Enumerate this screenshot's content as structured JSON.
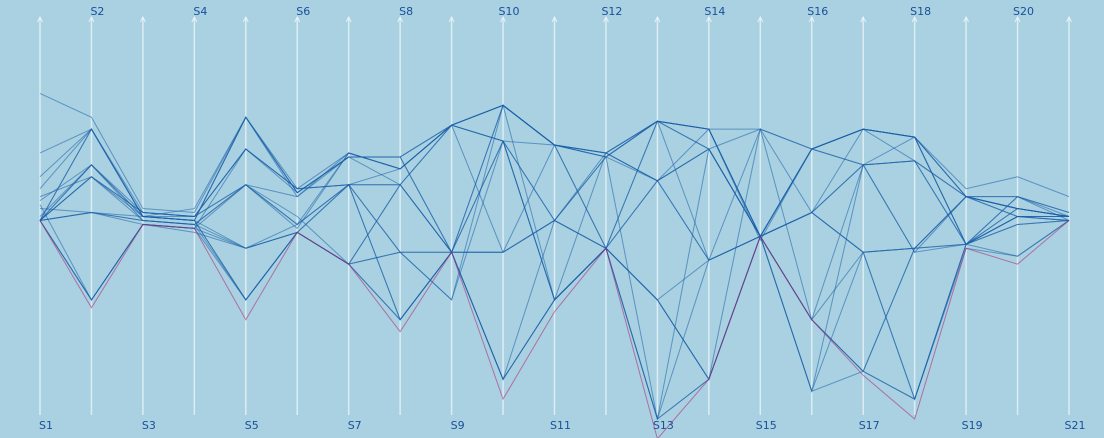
{
  "chart_data": {
    "type": "parallel_coordinates",
    "categories": [
      "S1",
      "S2",
      "S3",
      "S4",
      "S5",
      "S6",
      "S7",
      "S8",
      "S9",
      "S10",
      "S11",
      "S12",
      "S13",
      "S14",
      "S15",
      "S16",
      "S17",
      "S18",
      "S19",
      "S20",
      "S21"
    ],
    "ylim": [
      0,
      100
    ],
    "series": [
      {
        "color": "#1a5ea8",
        "values": [
          49,
          72,
          50,
          49,
          75,
          55,
          65,
          65,
          73,
          78,
          68,
          65,
          74,
          72,
          44,
          67,
          72,
          70,
          55,
          52,
          50
        ]
      },
      {
        "color": "#1a5ea8",
        "values": [
          49,
          63,
          51,
          50,
          67,
          57,
          58,
          58,
          41,
          69,
          49,
          42,
          59,
          67,
          45,
          51,
          63,
          64,
          43,
          50,
          49
        ]
      },
      {
        "color": "#1a5ea8",
        "values": [
          49,
          60,
          49,
          48,
          58,
          48,
          66,
          62,
          73,
          78,
          68,
          66,
          74,
          39,
          45,
          67,
          72,
          70,
          43,
          55,
          50
        ]
      },
      {
        "color": "#1a5ea8",
        "values": [
          49,
          29,
          48,
          47,
          42,
          46,
          38,
          24,
          41,
          9,
          29,
          42,
          29,
          9,
          45,
          24,
          11,
          4,
          42,
          40,
          49
        ]
      },
      {
        "color": "#1a5ea8",
        "values": [
          49,
          51,
          50,
          49,
          29,
          46,
          58,
          41,
          41,
          41,
          49,
          65,
          -1,
          67,
          72,
          51,
          41,
          42,
          55,
          52,
          50
        ]
      },
      {
        "color": "#1a5ea8",
        "values": [
          57,
          72,
          50,
          52,
          75,
          56,
          65,
          65,
          41,
          78,
          68,
          42,
          74,
          72,
          45,
          67,
          72,
          70,
          43,
          50,
          49
        ]
      },
      {
        "color": "#1a5ea8",
        "values": [
          55,
          60,
          51,
          50,
          58,
          50,
          38,
          58,
          73,
          69,
          29,
          42,
          59,
          39,
          45,
          6,
          63,
          41,
          55,
          55,
          51
        ]
      },
      {
        "color": "#1a5ea8",
        "values": [
          49,
          63,
          49,
          48,
          29,
          46,
          58,
          24,
          41,
          9,
          29,
          42,
          29,
          9,
          72,
          67,
          72,
          64,
          43,
          48,
          49
        ]
      },
      {
        "color": "#1a5ea8",
        "values": [
          52,
          51,
          48,
          47,
          67,
          57,
          66,
          62,
          73,
          41,
          49,
          66,
          74,
          67,
          45,
          51,
          41,
          4,
          43,
          52,
          50
        ]
      },
      {
        "color": "#1a5ea8",
        "values": [
          49,
          29,
          48,
          46,
          42,
          46,
          38,
          41,
          29,
          69,
          68,
          66,
          59,
          72,
          45,
          24,
          11,
          42,
          55,
          50,
          49
        ]
      },
      {
        "color": "#1a5ea8",
        "values": [
          60,
          72,
          50,
          49,
          75,
          56,
          65,
          58,
          41,
          78,
          29,
          42,
          -1,
          9,
          45,
          67,
          63,
          70,
          43,
          52,
          50
        ]
      },
      {
        "color": "#1a5ea8",
        "values": [
          49,
          51,
          49,
          48,
          58,
          48,
          58,
          62,
          73,
          78,
          68,
          65,
          74,
          72,
          45,
          51,
          72,
          70,
          55,
          52,
          50
        ]
      },
      {
        "color": "#1a5ea8",
        "values": [
          54,
          63,
          50,
          49,
          42,
          46,
          38,
          24,
          41,
          9,
          49,
          42,
          29,
          39,
          72,
          24,
          41,
          42,
          43,
          40,
          49
        ]
      },
      {
        "color": "#1a5ea8",
        "values": [
          49,
          60,
          51,
          50,
          67,
          56,
          65,
          65,
          41,
          41,
          68,
          66,
          59,
          67,
          45,
          6,
          11,
          4,
          43,
          50,
          50
        ]
      },
      {
        "color": "#1a5ea8",
        "values": [
          81,
          75,
          52,
          51,
          75,
          57,
          58,
          58,
          73,
          69,
          49,
          42,
          74,
          72,
          45,
          67,
          72,
          70,
          57,
          60,
          55
        ]
      },
      {
        "color": "#1a5ea8",
        "values": [
          49,
          29,
          48,
          47,
          29,
          46,
          38,
          41,
          41,
          9,
          29,
          42,
          -1,
          9,
          45,
          51,
          63,
          64,
          55,
          52,
          50
        ]
      },
      {
        "color": "#1a5ea8",
        "values": [
          66,
          72,
          50,
          50,
          58,
          55,
          66,
          62,
          73,
          78,
          68,
          65,
          59,
          39,
          45,
          24,
          11,
          42,
          43,
          55,
          49
        ]
      },
      {
        "color": "#1a5ea8",
        "values": [
          49,
          51,
          49,
          48,
          42,
          48,
          58,
          24,
          41,
          69,
          29,
          66,
          74,
          67,
          45,
          67,
          63,
          64,
          55,
          50,
          50
        ]
      },
      {
        "color": "#1a5ea8",
        "values": [
          50,
          63,
          50,
          49,
          75,
          56,
          65,
          65,
          73,
          78,
          68,
          42,
          29,
          9,
          45,
          51,
          41,
          4,
          43,
          48,
          49
        ]
      },
      {
        "color": "#1a5ea8",
        "values": [
          49,
          60,
          50,
          49,
          29,
          46,
          38,
          58,
          41,
          41,
          49,
          65,
          74,
          72,
          72,
          67,
          72,
          70,
          55,
          55,
          51
        ]
      },
      {
        "color": "#1a5ea8",
        "values": [
          49,
          72,
          51,
          50,
          67,
          57,
          58,
          41,
          29,
          78,
          68,
          66,
          59,
          67,
          45,
          24,
          63,
          41,
          43,
          50,
          50
        ]
      },
      {
        "color": "#1a5ea8",
        "values": [
          53,
          29,
          48,
          47,
          58,
          47,
          66,
          62,
          73,
          69,
          29,
          42,
          -1,
          39,
          45,
          6,
          41,
          42,
          55,
          52,
          50
        ]
      },
      {
        "color": "#b0206e",
        "values": [
          49,
          27,
          48,
          47,
          24,
          46,
          38,
          21,
          41,
          4,
          26,
          42,
          -6,
          9,
          45,
          24,
          10,
          -1,
          42,
          38,
          49
        ]
      }
    ]
  }
}
